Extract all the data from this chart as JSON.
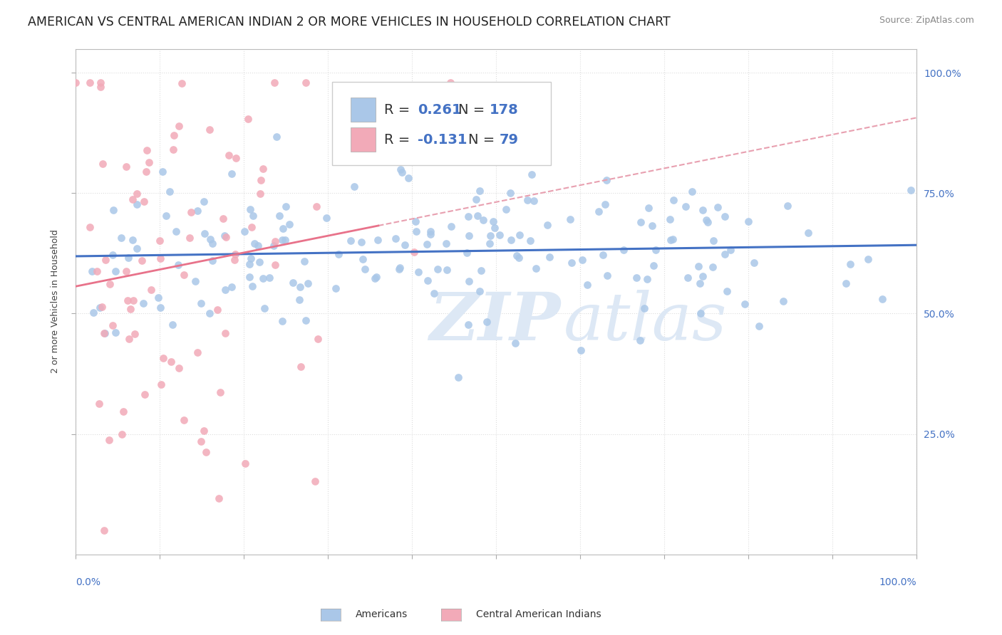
{
  "title": "AMERICAN VS CENTRAL AMERICAN INDIAN 2 OR MORE VEHICLES IN HOUSEHOLD CORRELATION CHART",
  "source": "Source: ZipAtlas.com",
  "ylabel": "2 or more Vehicles in Household",
  "R_american": 0.261,
  "N_american": 178,
  "R_central": -0.131,
  "N_central": 79,
  "color_american": "#aac7e8",
  "color_central": "#f2aab8",
  "color_american_line": "#4472c4",
  "color_central_line_solid": "#e8728a",
  "color_central_line_dashed": "#e8a0b0",
  "watermark_zip": "ZIP",
  "watermark_atlas": "atlas",
  "xmin": 0.0,
  "xmax": 1.0,
  "ymin": 0.0,
  "ymax": 1.05,
  "yticks": [
    0.25,
    0.5,
    0.75,
    1.0
  ],
  "ytick_labels": [
    "25.0%",
    "50.0%",
    "75.0%",
    "100.0%"
  ],
  "background_color": "#ffffff",
  "grid_color": "#dddddd",
  "title_fontsize": 12.5,
  "axis_label_fontsize": 9,
  "tick_label_color": "#4472c4",
  "legend_fontsize": 14
}
